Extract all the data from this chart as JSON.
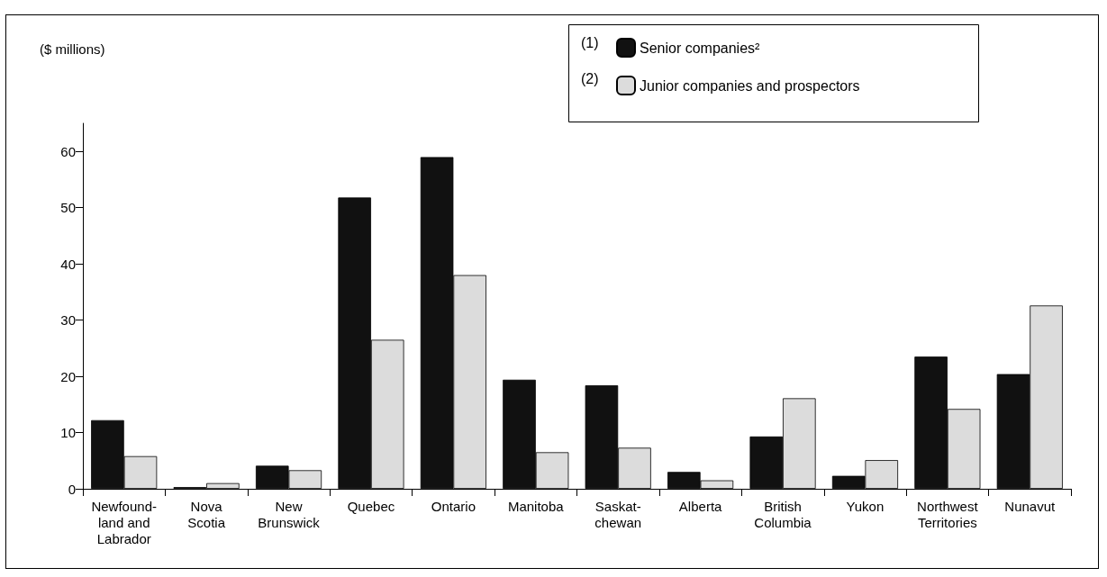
{
  "chart_data": {
    "type": "bar",
    "ylabel": "($ millions)",
    "categories": [
      "Newfound-\nland and\nLabrador",
      "Nova\nScotia",
      "New\nBrunswick",
      "Quebec",
      "Ontario",
      "Manitoba",
      "Saskat-\nchewan",
      "Alberta",
      "British\nColumbia",
      "Yukon",
      "Northwest\nTerritories",
      "Nunavut"
    ],
    "series": [
      {
        "name": "Senior companies²",
        "color": "#111111",
        "values": [
          12.2,
          0.3,
          4.1,
          51.8,
          59,
          19.4,
          18.4,
          3.0,
          9.3,
          2.3,
          23.5,
          20.4
        ]
      },
      {
        "name": "Junior companies and prospectors",
        "color": "#dcdcdc",
        "values": [
          5.8,
          1.0,
          3.3,
          26.5,
          38,
          6.5,
          7.3,
          1.5,
          16.1,
          5.1,
          14.2,
          32.6
        ]
      }
    ],
    "annotations": [
      "(1)",
      "(2)"
    ],
    "ylim": [
      0,
      65
    ],
    "yticks": [
      0,
      10,
      20,
      30,
      40,
      50,
      60
    ],
    "grid": false,
    "legend": "top right"
  }
}
